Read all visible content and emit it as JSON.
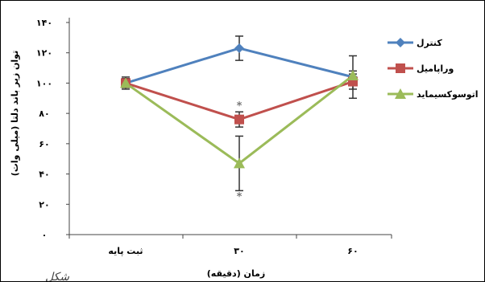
{
  "chart_data": {
    "type": "line",
    "title": "",
    "xlabel": "زمان (دقیقه)",
    "ylabel": "توان زیر باند دلتا (میلی وات)",
    "categories": [
      "ثبت پایه",
      "۳۰",
      "۶۰"
    ],
    "ylim": [
      0,
      140
    ],
    "y_ticks": [
      0,
      20,
      40,
      60,
      80,
      100,
      120,
      140
    ],
    "y_tick_labels": [
      "۰",
      "۲۰",
      "۴۰",
      "۶۰",
      "۸۰",
      "۱۰۰",
      "۱۲۰",
      "۱۴۰"
    ],
    "grid": false,
    "legend_position": "top-right",
    "series": [
      {
        "name": "کنترل",
        "values": [
          100,
          123,
          104
        ],
        "errors": [
          4,
          8,
          14
        ],
        "color": "#4f81bd",
        "marker": "diamond"
      },
      {
        "name": "وراپامیل",
        "values": [
          100,
          76,
          101
        ],
        "errors": [
          3,
          5,
          5
        ],
        "color": "#c0504d",
        "marker": "square"
      },
      {
        "name": "اتوسوکسیماید",
        "values": [
          100,
          47,
          105
        ],
        "errors": [
          2,
          18,
          3
        ],
        "color": "#9bbb59",
        "marker": "triangle"
      }
    ],
    "annotations": [
      {
        "text": "*",
        "category_index": 1,
        "y": 86
      },
      {
        "text": "*",
        "category_index": 1,
        "y": 26
      }
    ]
  },
  "corner_text": "شکل"
}
